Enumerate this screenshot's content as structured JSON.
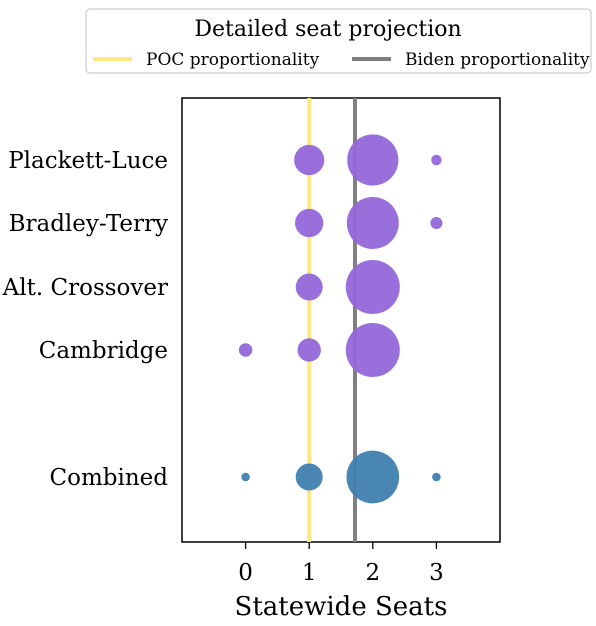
{
  "chart_data": {
    "type": "scatter",
    "title": "",
    "xlabel": "Statewide Seats",
    "ylabel": "",
    "xlim": [
      -1,
      4
    ],
    "xticks": [
      0,
      1,
      2,
      3
    ],
    "grid": false,
    "legend": {
      "title": "Detailed seat projection",
      "placement": "top",
      "entries": [
        {
          "label": "POC proportionality",
          "color": "#ffe680"
        },
        {
          "label": "Biden proportionality",
          "color": "#808080"
        }
      ]
    },
    "reference_lines": [
      {
        "name": "POC proportionality",
        "x": 1.0,
        "color": "#ffe680"
      },
      {
        "name": "Biden proportionality",
        "x": 1.72,
        "color": "#808080"
      }
    ],
    "categories": [
      "Plackett-Luce",
      "Bradley-Terry",
      "Alt. Crossover",
      "Cambridge",
      "Combined"
    ],
    "series": [
      {
        "category": "Plackett-Luce",
        "color": "#9467d9",
        "points": [
          {
            "x": 1,
            "share": 0.25
          },
          {
            "x": 2,
            "share": 0.72
          },
          {
            "x": 3,
            "share": 0.03
          }
        ]
      },
      {
        "category": "Bradley-Terry",
        "color": "#9467d9",
        "points": [
          {
            "x": 1,
            "share": 0.22
          },
          {
            "x": 2,
            "share": 0.74
          },
          {
            "x": 3,
            "share": 0.04
          }
        ]
      },
      {
        "category": "Alt. Crossover",
        "color": "#9467d9",
        "points": [
          {
            "x": 1,
            "share": 0.2
          },
          {
            "x": 2,
            "share": 0.8
          }
        ]
      },
      {
        "category": "Cambridge",
        "color": "#9467d9",
        "points": [
          {
            "x": 0,
            "share": 0.05
          },
          {
            "x": 1,
            "share": 0.15
          },
          {
            "x": 2,
            "share": 0.8
          }
        ]
      },
      {
        "category": "Combined",
        "color": "#3f7fb0",
        "points": [
          {
            "x": 0,
            "share": 0.02
          },
          {
            "x": 1,
            "share": 0.2
          },
          {
            "x": 2,
            "share": 0.76
          },
          {
            "x": 3,
            "share": 0.02
          }
        ]
      }
    ]
  }
}
